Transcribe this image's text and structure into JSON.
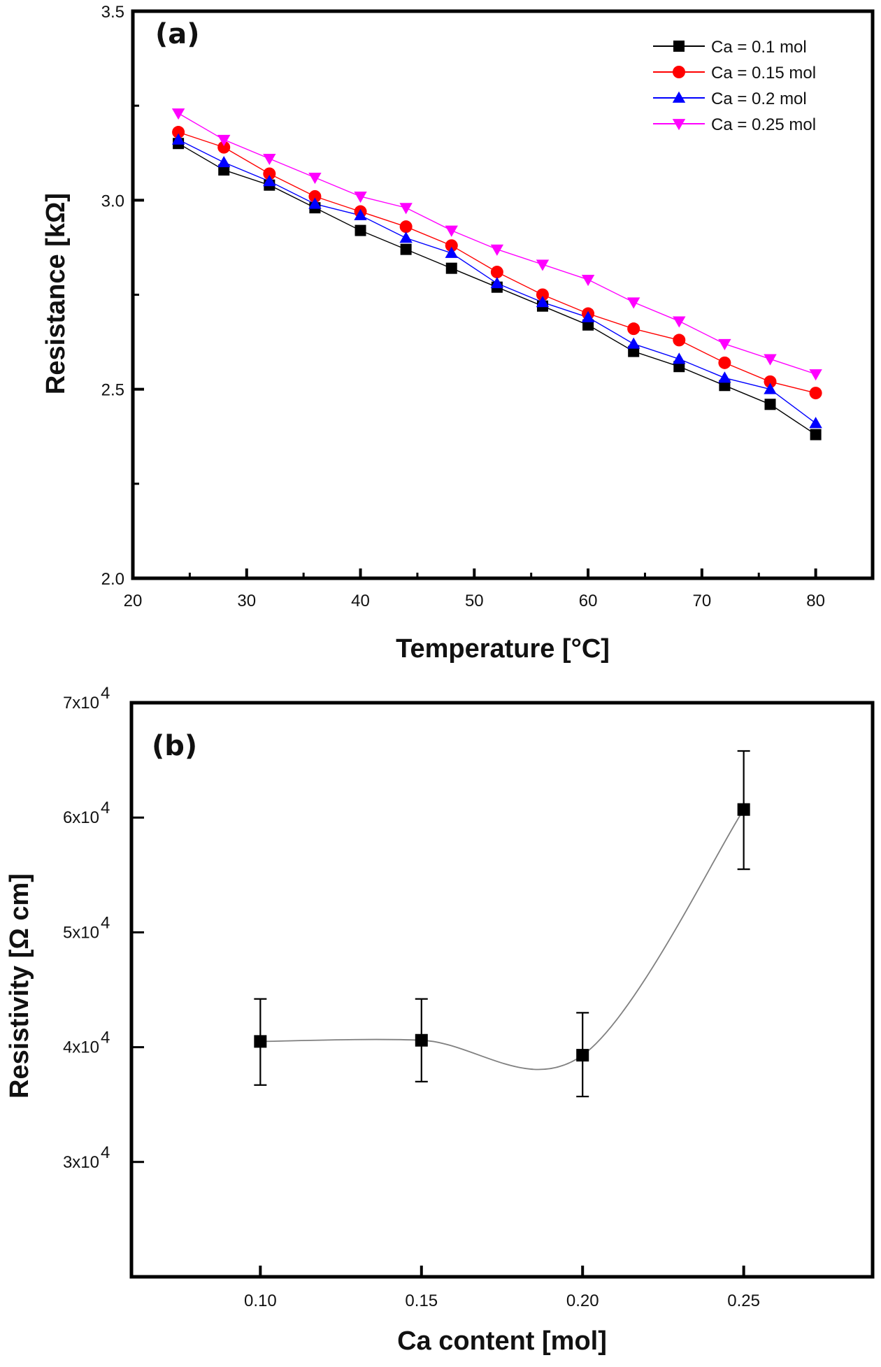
{
  "chart_data": [
    {
      "type": "line",
      "panel_label": "(a)",
      "title": "",
      "xlabel": "Temperature [°C]",
      "ylabel": "Resistance [kΩ]",
      "xlim": [
        20,
        85
      ],
      "ylim": [
        2.0,
        3.5
      ],
      "xticks": [
        20,
        30,
        40,
        50,
        60,
        70,
        80
      ],
      "xtick_labels": [
        "20",
        "30",
        "40",
        "50",
        "60",
        "70",
        "80"
      ],
      "yticks": [
        2.0,
        2.5,
        3.0,
        3.5
      ],
      "ytick_labels": [
        "2.0",
        "2.5",
        "3.0",
        "3.5"
      ],
      "grid": false,
      "legend_position": "top-right",
      "x": [
        24,
        28,
        32,
        36,
        40,
        44,
        48,
        52,
        56,
        60,
        64,
        68,
        72,
        76,
        80
      ],
      "series": [
        {
          "name": "Ca = 0.1 mol",
          "color": "#000000",
          "marker": "square",
          "values": [
            3.15,
            3.08,
            3.04,
            2.98,
            2.92,
            2.87,
            2.82,
            2.77,
            2.72,
            2.67,
            2.6,
            2.56,
            2.51,
            2.46,
            2.38
          ]
        },
        {
          "name": "Ca = 0.15 mol",
          "color": "#ff0000",
          "marker": "circle",
          "values": [
            3.18,
            3.14,
            3.07,
            3.01,
            2.97,
            2.93,
            2.88,
            2.81,
            2.75,
            2.7,
            2.66,
            2.63,
            2.57,
            2.52,
            2.49
          ]
        },
        {
          "name": "Ca = 0.2 mol",
          "color": "#0000ff",
          "marker": "triangle-up",
          "values": [
            3.16,
            3.1,
            3.05,
            2.99,
            2.96,
            2.9,
            2.86,
            2.78,
            2.73,
            2.69,
            2.62,
            2.58,
            2.53,
            2.5,
            2.41
          ]
        },
        {
          "name": "Ca = 0.25 mol",
          "color": "#ff00ff",
          "marker": "triangle-down",
          "values": [
            3.23,
            3.16,
            3.11,
            3.06,
            3.01,
            2.98,
            2.92,
            2.87,
            2.83,
            2.79,
            2.73,
            2.68,
            2.62,
            2.58,
            2.54
          ]
        }
      ]
    },
    {
      "type": "scatter",
      "panel_label": "(b)",
      "title": "",
      "xlabel": "Ca content [mol]",
      "ylabel": "Resistivity [Ω cm]",
      "xlim": [
        0.06,
        0.29
      ],
      "ylim": [
        20000,
        70000
      ],
      "xticks": [
        0.1,
        0.15,
        0.2,
        0.25
      ],
      "xtick_labels": [
        "0.10",
        "0.15",
        "0.20",
        "0.25"
      ],
      "yticks": [
        30000,
        40000,
        50000,
        60000,
        70000
      ],
      "ytick_labels": [
        {
          "base": "3x10",
          "exp": "4"
        },
        {
          "base": "4x10",
          "exp": "4"
        },
        {
          "base": "5x10",
          "exp": "4"
        },
        {
          "base": "6x10",
          "exp": "4"
        },
        {
          "base": "7x10",
          "exp": "4"
        }
      ],
      "grid": false,
      "legend_position": "none",
      "x": [
        0.1,
        0.15,
        0.2,
        0.25
      ],
      "series": [
        {
          "name": "Resistivity",
          "color": "#000000",
          "marker": "square",
          "values": [
            40500,
            40600,
            39300,
            60700
          ],
          "error_upper": [
            44200,
            44200,
            43000,
            65800
          ],
          "error_lower": [
            36700,
            37000,
            35700,
            55500
          ]
        }
      ],
      "fit_curve": {
        "color": "#808080",
        "description": "smooth spline through points"
      }
    }
  ]
}
